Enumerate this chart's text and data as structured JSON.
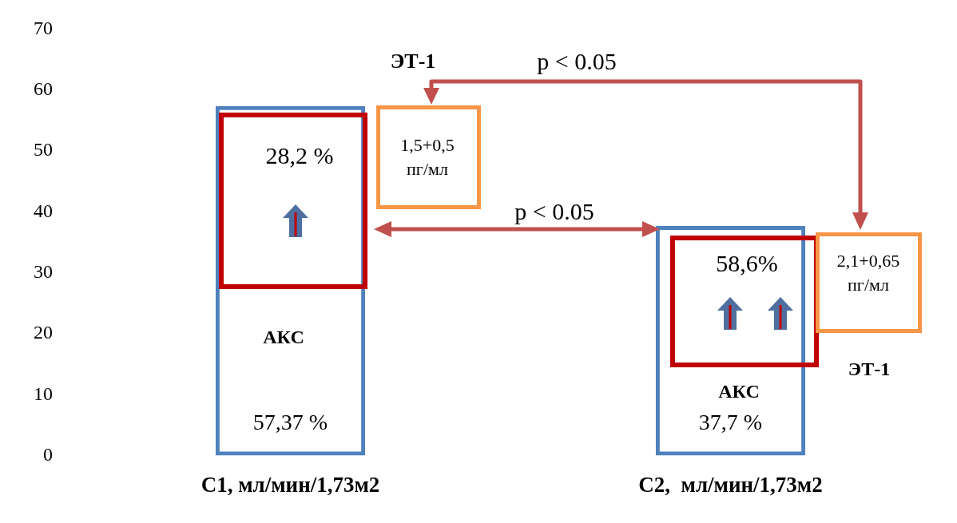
{
  "chart_data": {
    "type": "bar",
    "categories": [
      "С1, мл/мин/1,73м2",
      "С2,  мл/мин/1,73м2"
    ],
    "values": [
      57.37,
      37.7
    ],
    "color": "#4f81bd",
    "value_labels": [
      "57,37 %",
      "37,7 %"
    ],
    "ylim": [
      0,
      70
    ],
    "yticks": [
      0,
      10,
      20,
      30,
      40,
      50,
      60,
      70
    ],
    "annotations": [
      "ЭТ-1",
      "p < 0.05",
      "1,5+0,5 пг/мл",
      "28,2 %",
      "p < 0.05",
      "58,6%",
      "2,1+0,65 пг/мл",
      "АКС",
      "АКС",
      "ЭТ-1"
    ]
  }
}
